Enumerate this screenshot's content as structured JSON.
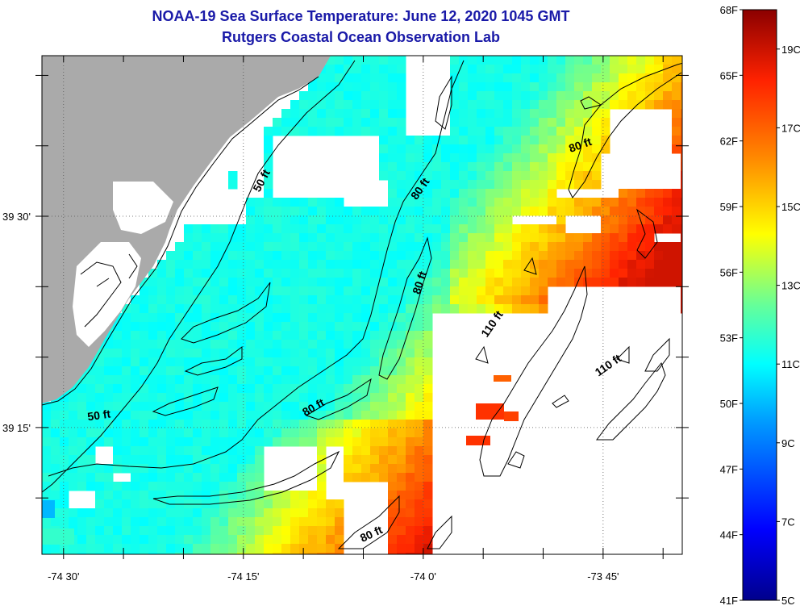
{
  "title": "NOAA-19 Sea Surface Temperature:  June 12, 2020 1045 GMT",
  "subtitle": "Rutgers Coastal Ocean Observation Lab",
  "axes": {
    "lon_ticks": [
      {
        "value": -74.5,
        "label": "-74 30'"
      },
      {
        "value": -74.25,
        "label": "-74 15'"
      },
      {
        "value": -74.0,
        "label": "-74 0'"
      },
      {
        "value": -73.75,
        "label": "-73 45'"
      }
    ],
    "lat_ticks": [
      {
        "value": 39.5,
        "label": "39 30'"
      },
      {
        "value": 39.25,
        "label": "39 15'"
      }
    ],
    "lon_range": [
      -74.53,
      -73.64
    ],
    "lat_range": [
      39.1,
      39.69
    ]
  },
  "contour_labels": [
    {
      "text": "50 ft",
      "lon": -74.22,
      "lat": 39.54
    },
    {
      "text": "80 ft",
      "lon": -74.0,
      "lat": 39.53
    },
    {
      "text": "80 ft",
      "lon": -74.0,
      "lat": 39.42
    },
    {
      "text": "80 ft",
      "lon": -73.78,
      "lat": 39.58
    },
    {
      "text": "110 ft",
      "lon": -73.9,
      "lat": 39.37
    },
    {
      "text": "110 ft",
      "lon": -73.74,
      "lat": 39.32
    },
    {
      "text": "80 ft",
      "lon": -74.15,
      "lat": 39.27
    },
    {
      "text": "50 ft",
      "lon": -74.45,
      "lat": 39.26
    },
    {
      "text": "80 ft",
      "lon": -74.07,
      "lat": 39.12
    }
  ],
  "colorbar": {
    "fahrenheit_labels": [
      "68F",
      "65F",
      "62F",
      "59F",
      "56F",
      "53F",
      "50F",
      "47F",
      "44F",
      "41F"
    ],
    "celsius_labels": [
      "19C",
      "17C",
      "15C",
      "13C",
      "11C",
      "9C",
      "7C",
      "5C"
    ],
    "range_c": [
      5,
      20
    ]
  },
  "colors": {
    "land": "#aaaaaa",
    "title": "#1a1aa8",
    "grid": "#555555"
  }
}
